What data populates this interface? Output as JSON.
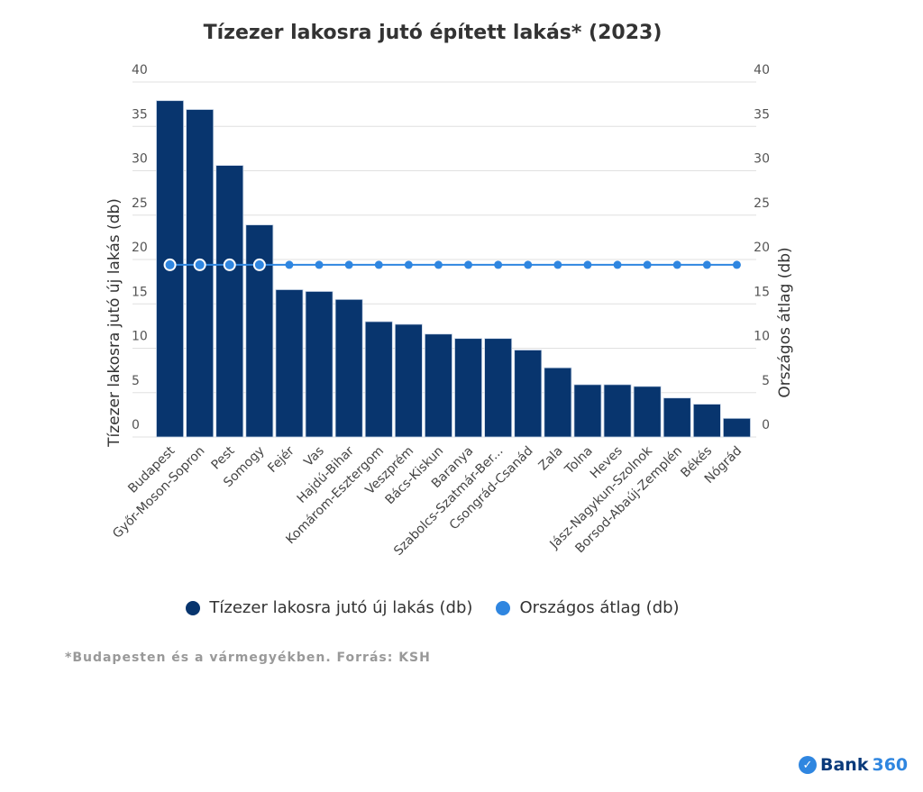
{
  "chart_data": {
    "type": "bar",
    "title": "Tízezer lakosra jutó épített lakás* (2023)",
    "ylabel": "Tízezer lakosra jutó új lakás (db)",
    "y2label": "Országos átlag (db)",
    "ylim": [
      0,
      40
    ],
    "y2lim": [
      0,
      40
    ],
    "yticks": [
      0,
      5,
      10,
      15,
      20,
      25,
      30,
      35,
      40
    ],
    "grid": true,
    "legend_position": "bottom",
    "categories": [
      "Budapest",
      "Győr-Moson-Sopron",
      "Pest",
      "Somogy",
      "Fejér",
      "Vas",
      "Hajdú-Bihar",
      "Komárom-Esztergom",
      "Veszprém",
      "Bács-Kiskun",
      "Baranya",
      "Szabolcs-Szatmár-Ber...",
      "Csongrád-Csanád",
      "Zala",
      "Tolna",
      "Heves",
      "Jász-Nagykun-Szolnok",
      "Borsod-Abaúj-Zemplén",
      "Békés",
      "Nógrád"
    ],
    "series": [
      {
        "name": "Tízezer lakosra jutó új lakás (db)",
        "type": "bar",
        "color": "#08356e",
        "values": [
          37.9,
          36.9,
          30.6,
          23.9,
          16.6,
          16.4,
          15.5,
          13.0,
          12.7,
          11.6,
          11.1,
          11.1,
          9.8,
          7.8,
          5.9,
          5.9,
          5.7,
          4.4,
          3.7,
          2.1
        ]
      },
      {
        "name": "Országos átlag (db)",
        "type": "line",
        "axis": "right",
        "color": "#2f86e0",
        "values": [
          19.4,
          19.4,
          19.4,
          19.4,
          19.4,
          19.4,
          19.4,
          19.4,
          19.4,
          19.4,
          19.4,
          19.4,
          19.4,
          19.4,
          19.4,
          19.4,
          19.4,
          19.4,
          19.4,
          19.4
        ]
      }
    ]
  },
  "footnote": "*Budapesten és a vármegyékben. Forrás: KSH",
  "logo": {
    "text": "Bank",
    "number": "360"
  }
}
